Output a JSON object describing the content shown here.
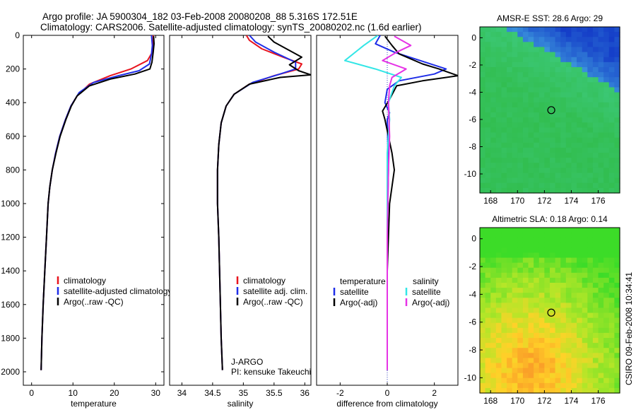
{
  "title": {
    "line1": "Argo profile: JA 5900304_182 03-Feb-2008 20080208_88 5.316S 172.51E",
    "line2": "Climatology: CARS2006. Satellite-adjusted climatology: synTS_20080202.nc (1.6d earlier)"
  },
  "colors": {
    "clim": "#e8141e",
    "sat": "#1f2ee8",
    "argo": "#000000",
    "sat_diff_s": "#33e6e6",
    "argo_diff_s": "#e633e6"
  },
  "chart_data": [
    {
      "type": "line",
      "name": "temperature-profile",
      "xlabel": "temperature",
      "ylabel": "",
      "xlim": [
        -2,
        32
      ],
      "ylim": [
        2080,
        0
      ],
      "xticks": [
        0,
        10,
        20,
        30
      ],
      "yticks": [
        0,
        200,
        400,
        600,
        800,
        1000,
        1200,
        1400,
        1600,
        1800,
        2000
      ],
      "legend": [
        "climatology",
        "satellite-adjusted climatology",
        "Argo(..raw -QC)"
      ],
      "series": [
        {
          "name": "climatology",
          "color_key": "clim",
          "points": [
            [
              29.4,
              0
            ],
            [
              29.4,
              60
            ],
            [
              29.2,
              100
            ],
            [
              28,
              150
            ],
            [
              24,
              200
            ],
            [
              19,
              240
            ],
            [
              14,
              290
            ],
            [
              11,
              360
            ],
            [
              9.5,
              420
            ],
            [
              8.2,
              500
            ],
            [
              6.8,
              600
            ],
            [
              5.8,
              700
            ],
            [
              5,
              800
            ],
            [
              4.4,
              900
            ],
            [
              4,
              1000
            ],
            [
              3.6,
              1200
            ],
            [
              3.2,
              1400
            ],
            [
              2.8,
              1600
            ],
            [
              2.5,
              1800
            ],
            [
              2.3,
              1990
            ]
          ]
        },
        {
          "name": "satellite-adjusted climatology",
          "color_key": "sat",
          "points": [
            [
              29,
              0
            ],
            [
              29.2,
              60
            ],
            [
              29,
              110
            ],
            [
              28.5,
              170
            ],
            [
              26,
              210
            ],
            [
              21,
              240
            ],
            [
              15,
              280
            ],
            [
              11.5,
              340
            ],
            [
              9.5,
              420
            ],
            [
              8.2,
              500
            ],
            [
              6.8,
              600
            ],
            [
              5.8,
              700
            ],
            [
              5,
              800
            ],
            [
              4.4,
              900
            ],
            [
              4,
              1000
            ],
            [
              3.6,
              1200
            ],
            [
              3.2,
              1400
            ],
            [
              2.8,
              1600
            ],
            [
              2.5,
              1800
            ],
            [
              2.3,
              1990
            ]
          ]
        },
        {
          "name": "Argo(..raw -QC)",
          "color_key": "argo",
          "points": [
            [
              29.5,
              5
            ],
            [
              29.6,
              50
            ],
            [
              29.4,
              100
            ],
            [
              29.1,
              160
            ],
            [
              28.6,
              200
            ],
            [
              25,
              230
            ],
            [
              19,
              260
            ],
            [
              14,
              300
            ],
            [
              11,
              360
            ],
            [
              9.6,
              420
            ],
            [
              8.3,
              500
            ],
            [
              6.9,
              600
            ],
            [
              5.9,
              700
            ],
            [
              5,
              800
            ],
            [
              4.4,
              900
            ],
            [
              4,
              1000
            ],
            [
              3.6,
              1200
            ],
            [
              3.2,
              1400
            ],
            [
              2.8,
              1600
            ],
            [
              2.5,
              1800
            ],
            [
              2.3,
              1990
            ]
          ]
        }
      ]
    },
    {
      "type": "line",
      "name": "salinity-profile",
      "xlabel": "salinity",
      "ylabel": "",
      "xlim": [
        33.8,
        36.1
      ],
      "ylim": [
        2080,
        0
      ],
      "xticks": [
        34,
        34.5,
        35,
        35.5,
        36
      ],
      "yticks": [],
      "legend": [
        "climatology",
        "satellite adj. clim.",
        "Argo(..raw -QC)"
      ],
      "series": [
        {
          "name": "climatology",
          "color_key": "clim",
          "points": [
            [
              35.05,
              0
            ],
            [
              35.1,
              30
            ],
            [
              35.3,
              80
            ],
            [
              35.65,
              130
            ],
            [
              35.95,
              170
            ],
            [
              35.9,
              200
            ],
            [
              35.5,
              240
            ],
            [
              35.1,
              290
            ],
            [
              34.85,
              350
            ],
            [
              34.72,
              420
            ],
            [
              34.64,
              520
            ],
            [
              34.6,
              650
            ],
            [
              34.58,
              800
            ],
            [
              34.58,
              1000
            ],
            [
              34.6,
              1200
            ],
            [
              34.62,
              1500
            ],
            [
              34.64,
              1800
            ],
            [
              34.66,
              1990
            ]
          ]
        },
        {
          "name": "satellite adj. clim.",
          "color_key": "sat",
          "points": [
            [
              35.1,
              0
            ],
            [
              35.2,
              40
            ],
            [
              35.5,
              100
            ],
            [
              35.85,
              160
            ],
            [
              35.85,
              200
            ],
            [
              35.6,
              230
            ],
            [
              35.15,
              280
            ],
            [
              34.85,
              350
            ],
            [
              34.72,
              420
            ],
            [
              34.64,
              520
            ],
            [
              34.6,
              650
            ],
            [
              34.58,
              800
            ],
            [
              34.58,
              1000
            ],
            [
              34.6,
              1200
            ],
            [
              34.62,
              1500
            ],
            [
              34.64,
              1800
            ],
            [
              34.66,
              1990
            ]
          ]
        },
        {
          "name": "Argo(..raw -QC)",
          "color_key": "argo",
          "points": [
            [
              35.4,
              5
            ],
            [
              35.5,
              40
            ],
            [
              35.7,
              80
            ],
            [
              35.95,
              130
            ],
            [
              35.75,
              175
            ],
            [
              35.9,
              210
            ],
            [
              36.1,
              235
            ],
            [
              35.6,
              250
            ],
            [
              35.1,
              290
            ],
            [
              34.85,
              350
            ],
            [
              34.72,
              420
            ],
            [
              34.64,
              520
            ],
            [
              34.6,
              650
            ],
            [
              34.58,
              800
            ],
            [
              34.58,
              1000
            ],
            [
              34.6,
              1200
            ],
            [
              34.62,
              1500
            ],
            [
              34.64,
              1800
            ],
            [
              34.66,
              1990
            ]
          ]
        }
      ],
      "annotations": [
        "J-ARGO",
        "PI: kensuke Takeuchi"
      ]
    },
    {
      "type": "line",
      "name": "difference-profile",
      "xlabel": "difference from climatology",
      "ylabel": "",
      "xlim": [
        -3,
        3
      ],
      "ylim": [
        2080,
        0
      ],
      "xticks": [
        -2,
        0,
        2
      ],
      "yticks": [],
      "legend_left_heading": "temperature",
      "legend_right_heading": "salinity",
      "legend_left": [
        "satellite",
        "Argo(-adj)"
      ],
      "legend_right": [
        "satellite",
        "Argo(-adj)"
      ],
      "series": [
        {
          "name": "satellite T",
          "color_key": "sat",
          "points": [
            [
              -0.3,
              0
            ],
            [
              -0.5,
              50
            ],
            [
              0.3,
              100
            ],
            [
              2.5,
              200
            ],
            [
              2,
              230
            ],
            [
              0.5,
              270
            ],
            [
              0,
              320
            ],
            [
              -0.1,
              400
            ],
            [
              0.1,
              460
            ],
            [
              0,
              500
            ],
            [
              0.05,
              800
            ],
            [
              0,
              1200
            ],
            [
              0,
              1600
            ],
            [
              0,
              1990
            ]
          ]
        },
        {
          "name": "Argo(-adj) T",
          "color_key": "argo",
          "points": [
            [
              -0.1,
              5
            ],
            [
              0.2,
              60
            ],
            [
              0.5,
              110
            ],
            [
              1.5,
              170
            ],
            [
              2.2,
              200
            ],
            [
              3,
              240
            ],
            [
              1.5,
              270
            ],
            [
              0.4,
              300
            ],
            [
              0.1,
              380
            ],
            [
              -0.2,
              450
            ],
            [
              -0.1,
              500
            ],
            [
              0.2,
              700
            ],
            [
              0.3,
              800
            ],
            [
              0.1,
              1000
            ],
            [
              0,
              1400
            ],
            [
              0,
              1800
            ],
            [
              0,
              1990
            ]
          ]
        },
        {
          "name": "satellite S",
          "color_key": "sat_diff_s",
          "points": [
            [
              -0.4,
              0
            ],
            [
              -1,
              60
            ],
            [
              -1.8,
              150
            ],
            [
              -0.5,
              200
            ],
            [
              0.6,
              250
            ],
            [
              0.3,
              300
            ],
            [
              0.05,
              400
            ],
            [
              0.1,
              500
            ],
            [
              0,
              700
            ],
            [
              0,
              1200
            ],
            [
              0,
              1600
            ],
            [
              0,
              1990
            ]
          ]
        },
        {
          "name": "Argo(-adj) S",
          "color_key": "argo_diff_s",
          "points": [
            [
              0.3,
              5
            ],
            [
              1,
              60
            ],
            [
              0.4,
              100
            ],
            [
              -0.2,
              150
            ],
            [
              0.8,
              200
            ],
            [
              0.2,
              250
            ],
            [
              0.1,
              300
            ],
            [
              0.05,
              400
            ],
            [
              0.1,
              600
            ],
            [
              0.05,
              800
            ],
            [
              0,
              1200
            ],
            [
              0,
              1600
            ],
            [
              0,
              1990
            ]
          ]
        }
      ]
    },
    {
      "type": "heatmap",
      "name": "amsr-sst-map",
      "title": "AMSR-E SST: 28.6 Argo: 29",
      "xlim": [
        167.2,
        177.6
      ],
      "ylim": [
        -11.4,
        0.8
      ],
      "xticks": [
        168,
        170,
        172,
        174,
        176
      ],
      "yticks": [
        0,
        -2,
        -4,
        -6,
        -8,
        -10
      ],
      "marker": [
        172.51,
        -5.316
      ],
      "palette": "sst"
    },
    {
      "type": "heatmap",
      "name": "altimetric-sla-map",
      "title": "Altimetric SLA: 0.18 Argo: 0.14",
      "xlim": [
        167.2,
        177.6
      ],
      "ylim": [
        -11.1,
        0.8
      ],
      "xticks": [
        168,
        170,
        172,
        174,
        176
      ],
      "yticks": [
        0,
        -2,
        -4,
        -6,
        -8,
        -10
      ],
      "marker": [
        172.51,
        -5.316
      ],
      "palette": "sla"
    }
  ],
  "footer": {
    "credit": "CSIRO 09-Feb-2008 10:34:41"
  }
}
